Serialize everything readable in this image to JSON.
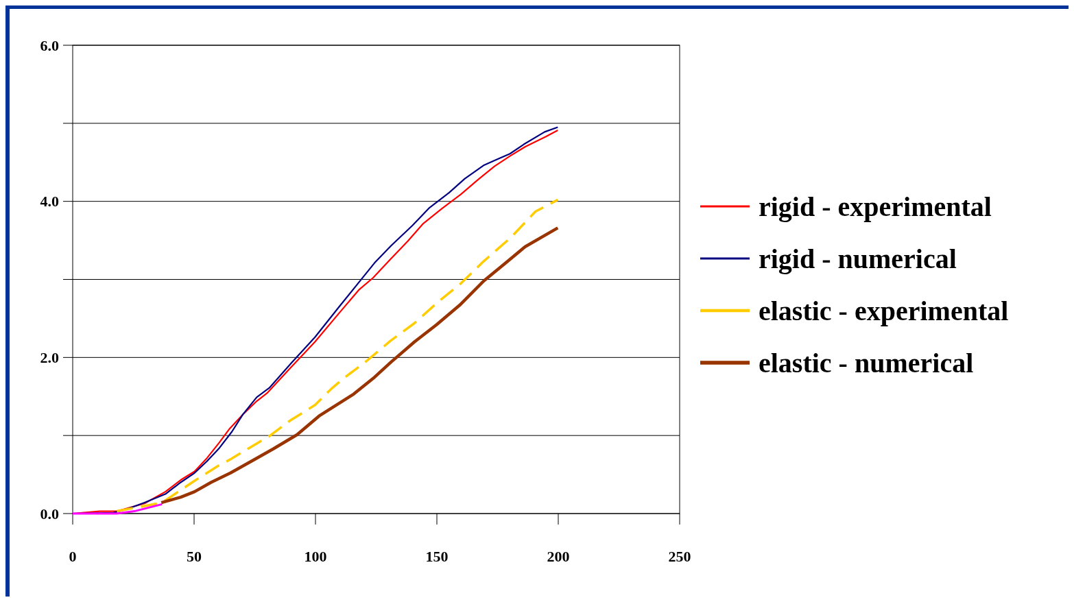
{
  "chart_data": {
    "type": "line",
    "xlim": [
      0,
      250
    ],
    "ylim": [
      0,
      6
    ],
    "xticks": [
      0,
      50,
      100,
      150,
      200,
      250
    ],
    "yticks": [
      {
        "value": 0,
        "label": "0.0"
      },
      {
        "value": 1,
        "label": null
      },
      {
        "value": 2,
        "label": "2.0"
      },
      {
        "value": 3,
        "label": null
      },
      {
        "value": 4,
        "label": "4.0"
      },
      {
        "value": 5,
        "label": null
      },
      {
        "value": 6,
        "label": "6.0"
      }
    ],
    "grid": "y",
    "legend": "right",
    "marker": "none",
    "series": [
      {
        "name": "rigid - experimental",
        "color": "#ff0000",
        "x": [
          0,
          11.1,
          18.2,
          29.6,
          38.2,
          44.5,
          50.2,
          55.3,
          60.4,
          64.7,
          70.1,
          75.8,
          80.3,
          89.5,
          99.8,
          109.5,
          118,
          123.7,
          130.3,
          138,
          144.2,
          152.2,
          159.9,
          167,
          173.8,
          180.1,
          186.4,
          194.9,
          199.8
        ],
        "values": [
          0,
          0.03,
          0.03,
          0.13,
          0.28,
          0.43,
          0.54,
          0.71,
          0.91,
          1.09,
          1.27,
          1.44,
          1.55,
          1.86,
          2.2,
          2.56,
          2.87,
          3.02,
          3.24,
          3.49,
          3.71,
          3.91,
          4.09,
          4.28,
          4.45,
          4.58,
          4.7,
          4.83,
          4.91
        ]
      },
      {
        "name": "rigid - numerical",
        "color": "#000080",
        "x": [
          0,
          16.8,
          22.5,
          29.6,
          38.2,
          44.5,
          50.2,
          55.3,
          60.4,
          65.6,
          70.1,
          75.8,
          81,
          90.1,
          99.8,
          109.5,
          118.6,
          124.3,
          131.1,
          139.9,
          147,
          155,
          161.5,
          169.2,
          174.9,
          180.1,
          185.8,
          194.4,
          199.8
        ],
        "values": [
          0,
          0.01,
          0.06,
          0.14,
          0.25,
          0.4,
          0.52,
          0.67,
          0.84,
          1.05,
          1.27,
          1.49,
          1.61,
          1.93,
          2.26,
          2.64,
          2.99,
          3.21,
          3.43,
          3.69,
          3.92,
          4.11,
          4.29,
          4.46,
          4.54,
          4.61,
          4.73,
          4.89,
          4.95
        ]
      },
      {
        "name": "elastic - experimental",
        "color": "#ffcc00",
        "line_style": "dashed",
        "x": [
          18.2,
          36.8,
          50.2,
          59.9,
          65.3,
          69.5,
          80.9,
          89.5,
          99.8,
          106.6,
          112.3,
          120.9,
          130.8,
          140.8,
          150.8,
          159.6,
          169.2,
          180.6,
          190.6,
          199.8
        ],
        "values": [
          0.03,
          0.14,
          0.42,
          0.61,
          0.7,
          0.78,
          0.99,
          1.19,
          1.39,
          1.6,
          1.75,
          1.95,
          2.21,
          2.44,
          2.72,
          2.94,
          3.23,
          3.54,
          3.87,
          4.02
        ]
      },
      {
        "name": "elastic - numerical",
        "color": "#993300",
        "x": [
          36.5,
          44.5,
          50.2,
          57,
          65,
          74.7,
          82.7,
          92.4,
          101.5,
          115.7,
          123.7,
          131.1,
          140.8,
          149.9,
          159.4,
          169.3,
          177.9,
          186.4,
          199.8
        ],
        "values": [
          0.14,
          0.21,
          0.28,
          0.4,
          0.52,
          0.69,
          0.83,
          1.01,
          1.25,
          1.53,
          1.73,
          1.94,
          2.2,
          2.42,
          2.67,
          2.98,
          3.2,
          3.42,
          3.66
        ]
      },
      {
        "color": "#ff00ff",
        "x": [
          0,
          18.2,
          25.4,
          36.8
        ],
        "values": [
          0,
          0,
          0.03,
          0.12
        ]
      }
    ]
  }
}
